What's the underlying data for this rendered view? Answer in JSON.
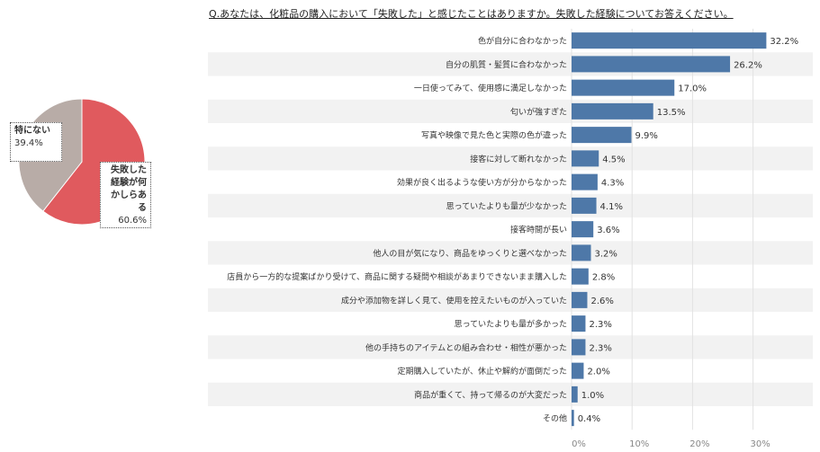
{
  "question": "Q.あなたは、化粧品の購入において「失敗した」と感じたことはありますか。失敗した経験についてお答えください。",
  "chart_data": [
    {
      "type": "pie",
      "slices": [
        {
          "label": "失敗した経験が何かしらある",
          "label_lines": [
            "失敗した",
            "経験が何",
            "かしらある"
          ],
          "value": 60.6,
          "display": "60.6%",
          "color": "#e05a5e"
        },
        {
          "label": "特にない",
          "label_lines": [
            "特にない"
          ],
          "value": 39.4,
          "display": "39.4%",
          "color": "#b8aca7"
        }
      ]
    },
    {
      "type": "bar",
      "orientation": "horizontal",
      "categories": [
        "色が自分に合わなかった",
        "自分の肌質・髪質に合わなかった",
        "一日使ってみて、使用感に満足しなかった",
        "匂いが強すぎた",
        "写真や映像で見た色と実際の色が違った",
        "接客に対して断れなかった",
        "効果が良く出るような使い方が分からなかった",
        "思っていたよりも量が少なかった",
        "接客時間が長い",
        "他人の目が気になり、商品をゆっくりと選べなかった",
        "店員から一方的な提案ばかり受けて、商品に関する疑問や相談があまりできないまま購入した",
        "成分や添加物を詳しく見て、使用を控えたいものが入っていた",
        "思っていたよりも量が多かった",
        "他の手持ちのアイテムとの組み合わせ・相性が悪かった",
        "定期購入していたが、休止や解約が面倒だった",
        "商品が重くて、持って帰るのが大変だった",
        "その他"
      ],
      "values": [
        32.2,
        26.2,
        17.0,
        13.5,
        9.9,
        4.5,
        4.3,
        4.1,
        3.6,
        3.2,
        2.8,
        2.6,
        2.3,
        2.3,
        2.0,
        1.0,
        0.4
      ],
      "value_labels": [
        "32.2%",
        "26.2%",
        "17.0%",
        "13.5%",
        "9.9%",
        "4.5%",
        "4.3%",
        "4.1%",
        "3.6%",
        "3.2%",
        "2.8%",
        "2.6%",
        "2.3%",
        "2.3%",
        "2.0%",
        "1.0%",
        "0.4%"
      ],
      "xlim": [
        0,
        38
      ],
      "x_ticks": [
        0,
        10,
        20,
        30
      ],
      "x_tick_labels": [
        "0%",
        "10%",
        "20%",
        "30%"
      ],
      "bar_color": "#4e78a8",
      "band_color": "#f2f2f2",
      "grid": true
    }
  ]
}
